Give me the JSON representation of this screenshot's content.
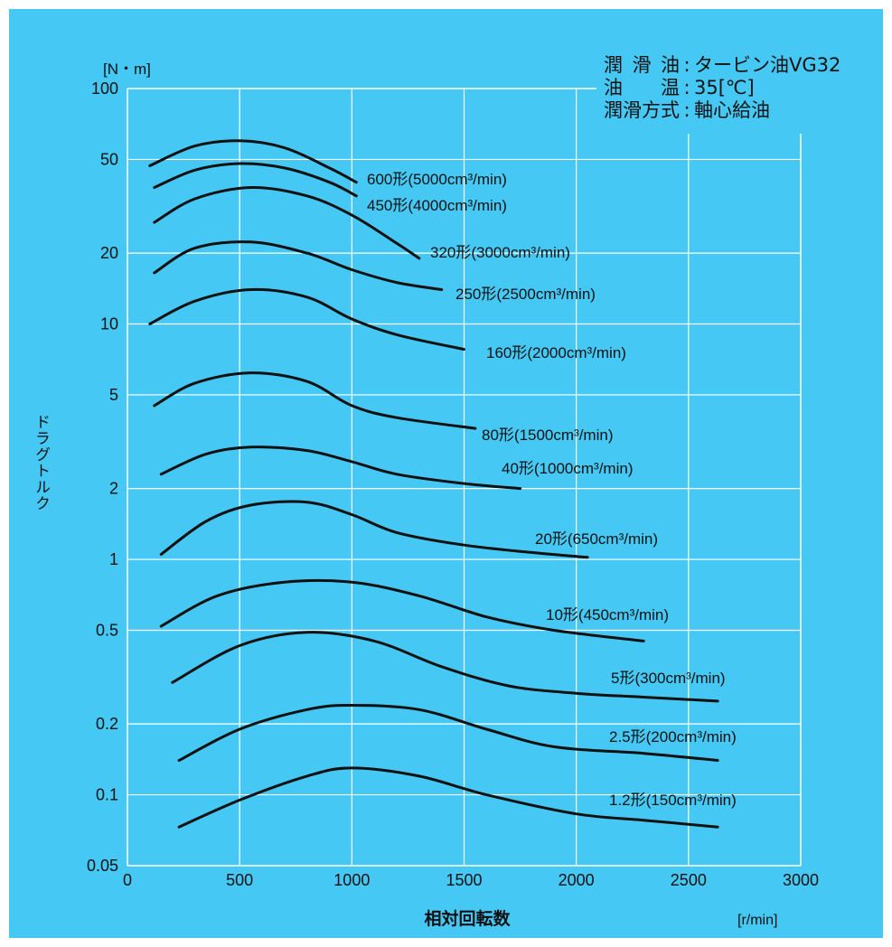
{
  "info": {
    "rows": [
      {
        "key": "潤滑油",
        "value": "タービン油VG32"
      },
      {
        "key": "油温",
        "value": "35[℃]"
      },
      {
        "key": "潤滑方式",
        "value": "軸心給油"
      }
    ]
  },
  "chart_data": {
    "type": "line",
    "xlabel": "相対回転数",
    "xunit": "[r/min]",
    "ylabel": "ドラグトルク",
    "yunit": "[N・m]",
    "xlim": [
      0,
      3000
    ],
    "ylim": [
      0.05,
      100
    ],
    "yscale": "log",
    "grid": true,
    "xticks": [
      0,
      500,
      1000,
      1500,
      2000,
      2500,
      3000
    ],
    "yticks": [
      {
        "value": 0.05,
        "label": "0.05"
      },
      {
        "value": 0.1,
        "label": "0.1"
      },
      {
        "value": 0.2,
        "label": "0.2"
      },
      {
        "value": 0.5,
        "label": "0.5"
      },
      {
        "value": 1,
        "label": "1"
      },
      {
        "value": 2,
        "label": "2"
      },
      {
        "value": 5,
        "label": "5"
      },
      {
        "value": 10,
        "label": "10"
      },
      {
        "value": 20,
        "label": "20"
      },
      {
        "value": 50,
        "label": "50"
      },
      {
        "value": 100,
        "label": "100"
      }
    ],
    "series": [
      {
        "name": "600形(5000cm³/min)",
        "x": [
          100,
          300,
          500,
          700,
          900,
          1020
        ],
        "y": [
          47,
          57,
          60,
          56,
          46,
          40
        ]
      },
      {
        "name": "450形(4000cm³/min)",
        "x": [
          120,
          300,
          500,
          700,
          900,
          1020
        ],
        "y": [
          38,
          45,
          48,
          46,
          40,
          35
        ]
      },
      {
        "name": "320形(3000cm³/min)",
        "x": [
          120,
          300,
          550,
          800,
          1000,
          1200,
          1300
        ],
        "y": [
          27,
          34,
          38,
          35,
          29,
          22,
          19
        ]
      },
      {
        "name": "250形(2500cm³/min)",
        "x": [
          120,
          300,
          550,
          800,
          1000,
          1200,
          1400
        ],
        "y": [
          16.5,
          21,
          22.3,
          20,
          17,
          15,
          14
        ]
      },
      {
        "name": "160形(2000cm³/min)",
        "x": [
          100,
          300,
          550,
          800,
          1000,
          1200,
          1500
        ],
        "y": [
          10,
          12.5,
          14,
          13,
          10.5,
          9,
          7.8
        ]
      },
      {
        "name": "80形(1500cm³/min)",
        "x": [
          120,
          300,
          550,
          800,
          1000,
          1200,
          1550
        ],
        "y": [
          4.5,
          5.6,
          6.2,
          5.7,
          4.5,
          4,
          3.6
        ]
      },
      {
        "name": "40形(1000cm³/min)",
        "x": [
          150,
          350,
          550,
          800,
          1000,
          1200,
          1500,
          1750
        ],
        "y": [
          2.3,
          2.8,
          3.0,
          2.9,
          2.6,
          2.3,
          2.1,
          2.0
        ]
      },
      {
        "name": "20形(650cm³/min)",
        "x": [
          150,
          350,
          550,
          800,
          1000,
          1200,
          1500,
          1800,
          2050
        ],
        "y": [
          1.05,
          1.45,
          1.7,
          1.75,
          1.55,
          1.3,
          1.15,
          1.07,
          1.02
        ]
      },
      {
        "name": "10形(450cm³/min)",
        "x": [
          150,
          400,
          700,
          1000,
          1300,
          1600,
          1900,
          2300
        ],
        "y": [
          0.52,
          0.7,
          0.8,
          0.8,
          0.7,
          0.57,
          0.5,
          0.45
        ]
      },
      {
        "name": "5形(300cm³/min)",
        "x": [
          200,
          500,
          800,
          1100,
          1400,
          1700,
          2000,
          2300,
          2630
        ],
        "y": [
          0.3,
          0.43,
          0.49,
          0.45,
          0.35,
          0.29,
          0.27,
          0.26,
          0.25
        ]
      },
      {
        "name": "2.5形(200cm³/min)",
        "x": [
          230,
          500,
          800,
          1000,
          1300,
          1600,
          1900,
          2300,
          2630
        ],
        "y": [
          0.14,
          0.19,
          0.23,
          0.24,
          0.23,
          0.19,
          0.16,
          0.15,
          0.14
        ]
      },
      {
        "name": "1.2形(150cm³/min)",
        "x": [
          230,
          500,
          800,
          1000,
          1300,
          1600,
          2000,
          2300,
          2630
        ],
        "y": [
          0.073,
          0.095,
          0.12,
          0.13,
          0.12,
          0.1,
          0.083,
          0.078,
          0.073
        ]
      }
    ]
  }
}
